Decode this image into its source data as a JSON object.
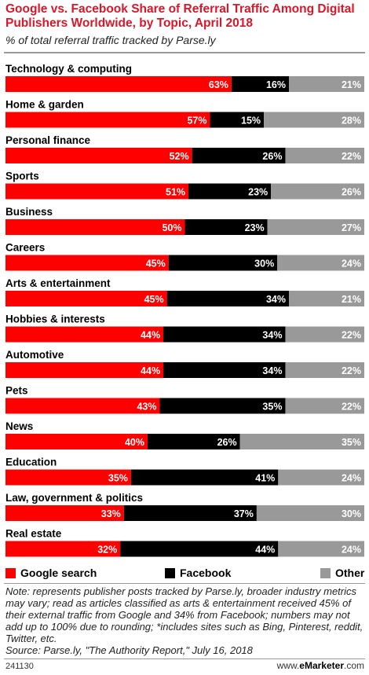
{
  "header": {
    "title": "Google vs. Facebook Share of Referral Traffic Among Digital Publishers Worldwide, by Topic, April 2018",
    "subtitle": "% of total referral traffic tracked by Parse.ly"
  },
  "colors": {
    "google": "#ff0000",
    "facebook": "#000000",
    "other": "#999999",
    "title": "#d7182a"
  },
  "chart_data": {
    "type": "bar",
    "orientation": "horizontal",
    "stacked": true,
    "categories": [
      "Technology & computing",
      "Home & garden",
      "Personal finance",
      "Sports",
      "Business",
      "Careers",
      "Arts & entertainment",
      "Hobbies & interests",
      "Automotive",
      "Pets",
      "News",
      "Education",
      "Law, government & politics",
      "Real estate"
    ],
    "series": [
      {
        "name": "Google search",
        "values": [
          63,
          57,
          52,
          51,
          50,
          45,
          45,
          44,
          44,
          43,
          40,
          35,
          33,
          32
        ]
      },
      {
        "name": "Facebook",
        "values": [
          16,
          15,
          26,
          23,
          23,
          30,
          34,
          34,
          34,
          35,
          26,
          41,
          37,
          44
        ]
      },
      {
        "name": "Other",
        "values": [
          21,
          28,
          22,
          26,
          27,
          24,
          21,
          22,
          22,
          22,
          35,
          24,
          30,
          24
        ]
      }
    ],
    "value_suffix": "%",
    "legend_position": "bottom"
  },
  "legend": {
    "google": "Google search",
    "facebook": "Facebook",
    "other": "Other"
  },
  "footer": {
    "note": "Note: represents publisher posts tracked by Parse.ly, broader industry metrics may vary; read as articles classified as arts & entertainment received 45% of their external traffic from Google and 34% from Facebook; numbers may not add up to 100% due to rounding; *includes sites such as Bing, Pinterest, reddit, Twitter, etc.",
    "source": "Source: Parse.ly, \"The Authority Report,\" July 16, 2018",
    "chart_id": "241130",
    "brand_prefix": "www.",
    "brand_name": "eMarketer",
    "brand_suffix": ".com"
  }
}
